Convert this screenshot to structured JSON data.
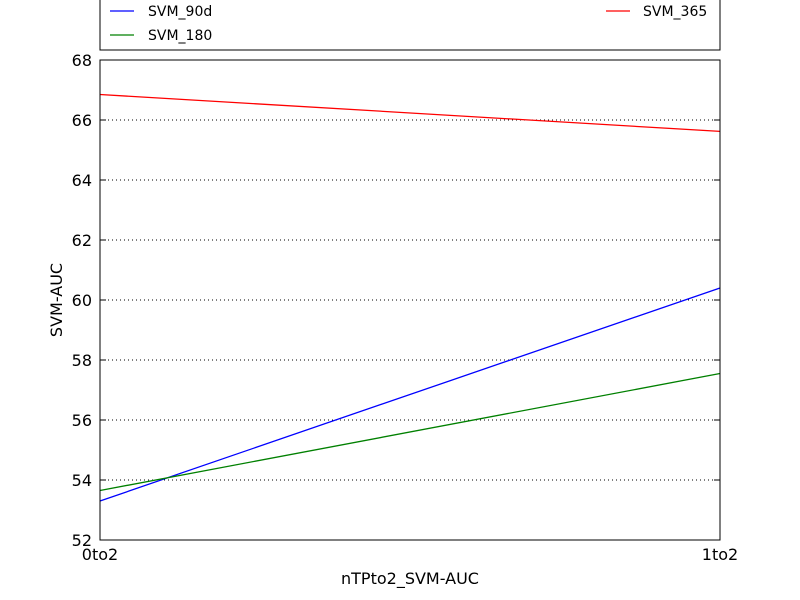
{
  "chart_data": {
    "type": "line",
    "title": "",
    "xlabel": "nTPto2_SVM-AUC",
    "ylabel": "SVM-AUC",
    "categories": [
      "0to2",
      "1to2"
    ],
    "ylim": [
      52,
      68
    ],
    "yticks": [
      "52",
      "54",
      "56",
      "58",
      "60",
      "62",
      "64",
      "66",
      "68"
    ],
    "grid": "horizontal dotted",
    "legend_position": "top, above plot",
    "series": [
      {
        "name": "SVM_90d",
        "color": "#0000ff",
        "values": [
          53.3,
          60.4
        ]
      },
      {
        "name": "SVM_180",
        "color": "#008000",
        "values": [
          53.65,
          57.55
        ]
      },
      {
        "name": "SVM_365",
        "color": "#ff0000",
        "values": [
          66.85,
          65.62
        ]
      }
    ]
  }
}
